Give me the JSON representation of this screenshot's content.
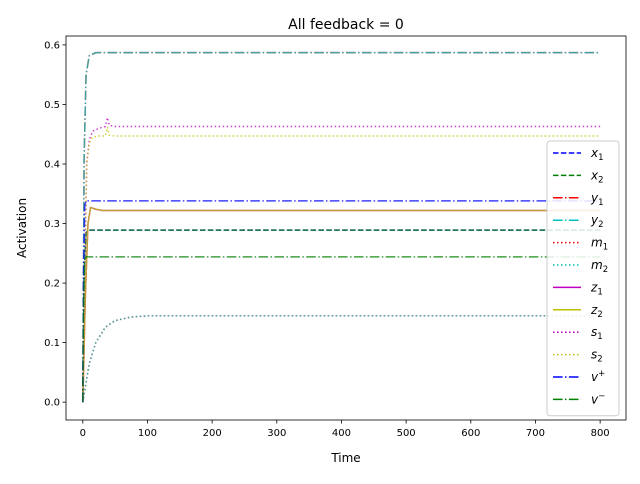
{
  "chart_data": {
    "type": "line",
    "title": "All feedback  = 0",
    "xlabel": "Time",
    "ylabel": "Activation",
    "xlim": [
      -26,
      840
    ],
    "ylim": [
      -0.03,
      0.615
    ],
    "xticks": [
      0,
      100,
      200,
      300,
      400,
      500,
      600,
      700,
      800
    ],
    "yticks": [
      0.0,
      0.1,
      0.2,
      0.3,
      0.4,
      0.5,
      0.6
    ],
    "xtick_labels": [
      "0",
      "100",
      "200",
      "300",
      "400",
      "500",
      "600",
      "700",
      "800"
    ],
    "ytick_labels": [
      "0.0",
      "0.1",
      "0.2",
      "0.3",
      "0.4",
      "0.5",
      "0.6"
    ],
    "grid": false,
    "legend_position": "right",
    "series": [
      {
        "name": "x",
        "sub": "1",
        "sup": "",
        "color": "#0000ff",
        "dash": "dashed",
        "points": [
          [
            0,
            0
          ],
          [
            2,
            0.22
          ],
          [
            5,
            0.285
          ],
          [
            10,
            0.289
          ],
          [
            800,
            0.289
          ]
        ]
      },
      {
        "name": "x",
        "sub": "2",
        "sup": "",
        "color": "#008000",
        "dash": "dashed",
        "points": [
          [
            0,
            0
          ],
          [
            2,
            0.22
          ],
          [
            5,
            0.285
          ],
          [
            10,
            0.289
          ],
          [
            800,
            0.289
          ]
        ]
      },
      {
        "name": "y",
        "sub": "1",
        "sup": "",
        "color": "#ff0000",
        "dash": "dashdot",
        "points": [
          [
            0,
            0
          ],
          [
            2,
            0.41
          ],
          [
            5,
            0.55
          ],
          [
            10,
            0.582
          ],
          [
            20,
            0.587
          ],
          [
            800,
            0.587
          ]
        ]
      },
      {
        "name": "y",
        "sub": "2",
        "sup": "",
        "color": "#00bfbf",
        "dash": "dashdot",
        "points": [
          [
            0,
            0
          ],
          [
            2,
            0.41
          ],
          [
            5,
            0.55
          ],
          [
            10,
            0.582
          ],
          [
            20,
            0.587
          ],
          [
            800,
            0.587
          ]
        ]
      },
      {
        "name": "m",
        "sub": "1",
        "sup": "",
        "color": "#ff0000",
        "dash": "dotted",
        "points": [
          [
            0,
            0
          ],
          [
            10,
            0.065
          ],
          [
            20,
            0.1
          ],
          [
            35,
            0.126
          ],
          [
            50,
            0.137
          ],
          [
            75,
            0.143
          ],
          [
            100,
            0.145
          ],
          [
            800,
            0.145
          ]
        ]
      },
      {
        "name": "m",
        "sub": "2",
        "sup": "",
        "color": "#00bfbf",
        "dash": "dotted",
        "points": [
          [
            0,
            0
          ],
          [
            10,
            0.065
          ],
          [
            20,
            0.1
          ],
          [
            35,
            0.126
          ],
          [
            50,
            0.137
          ],
          [
            75,
            0.143
          ],
          [
            100,
            0.145
          ],
          [
            800,
            0.145
          ]
        ]
      },
      {
        "name": "z",
        "sub": "1",
        "sup": "",
        "color": "#bf00bf",
        "dash": "solid",
        "points": [
          [
            0,
            0
          ],
          [
            4,
            0.18
          ],
          [
            8,
            0.3
          ],
          [
            12,
            0.327
          ],
          [
            20,
            0.324
          ],
          [
            30,
            0.322
          ],
          [
            800,
            0.322
          ]
        ]
      },
      {
        "name": "z",
        "sub": "2",
        "sup": "",
        "color": "#bfbf00",
        "dash": "solid",
        "points": [
          [
            0,
            0
          ],
          [
            4,
            0.18
          ],
          [
            8,
            0.3
          ],
          [
            12,
            0.327
          ],
          [
            20,
            0.324
          ],
          [
            30,
            0.322
          ],
          [
            800,
            0.322
          ]
        ]
      },
      {
        "name": "s",
        "sub": "1",
        "sup": "",
        "color": "#bf00bf",
        "dash": "dotted",
        "points": [
          [
            0,
            0
          ],
          [
            3,
            0.2
          ],
          [
            6,
            0.4
          ],
          [
            10,
            0.44
          ],
          [
            15,
            0.455
          ],
          [
            25,
            0.46
          ],
          [
            35,
            0.463
          ],
          [
            38,
            0.478
          ],
          [
            41,
            0.465
          ],
          [
            50,
            0.463
          ],
          [
            800,
            0.463
          ]
        ]
      },
      {
        "name": "s",
        "sub": "2",
        "sup": "",
        "color": "#bfbf00",
        "dash": "dotted",
        "points": [
          [
            0,
            0
          ],
          [
            3,
            0.2
          ],
          [
            6,
            0.4
          ],
          [
            10,
            0.435
          ],
          [
            15,
            0.445
          ],
          [
            25,
            0.447
          ],
          [
            35,
            0.447
          ],
          [
            38,
            0.462
          ],
          [
            41,
            0.448
          ],
          [
            50,
            0.447
          ],
          [
            800,
            0.447
          ]
        ]
      },
      {
        "name": "v",
        "sub": "",
        "sup": "+",
        "color": "#0000ff",
        "dash": "dashdot",
        "points": [
          [
            0,
            0
          ],
          [
            1,
            0.2
          ],
          [
            3,
            0.33
          ],
          [
            5,
            0.338
          ],
          [
            800,
            0.338
          ]
        ]
      },
      {
        "name": "v",
        "sub": "",
        "sup": "−",
        "color": "#008000",
        "dash": "dashdot",
        "points": [
          [
            0,
            0
          ],
          [
            1,
            0.16
          ],
          [
            3,
            0.238
          ],
          [
            5,
            0.244
          ],
          [
            800,
            0.244
          ]
        ]
      }
    ]
  }
}
